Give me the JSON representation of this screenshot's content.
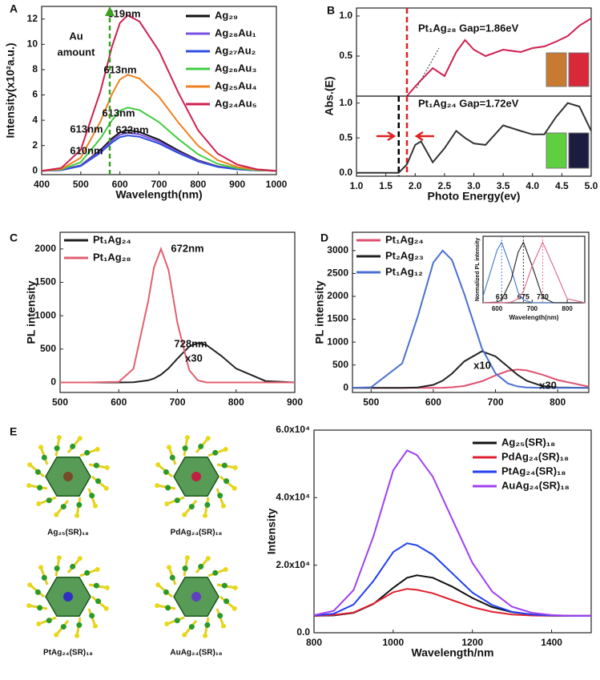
{
  "chart_data": [
    {
      "type": "line",
      "panel": "A",
      "xlabel": "Wavelength(nm)",
      "ylabel": "Intensity(x10²a.u.)",
      "x": [
        400,
        450,
        500,
        550,
        580,
        600,
        620,
        650,
        700,
        750,
        800,
        850,
        900,
        950,
        1000
      ],
      "xlim": [
        400,
        1000
      ],
      "xticks": [
        400,
        500,
        600,
        700,
        800,
        900,
        1000
      ],
      "ylim": [
        -0.3,
        13
      ],
      "yticks": [
        0,
        2,
        4,
        6,
        8,
        10,
        12
      ],
      "series": [
        {
          "name": "Ag₂₉",
          "color": "#111111",
          "values": [
            0,
            0.06,
            0.43,
            1.63,
            2.56,
            3.04,
            3.2,
            3.07,
            2.46,
            1.6,
            0.83,
            0.35,
            0.13,
            0.03,
            0
          ]
        },
        {
          "name": "Ag₂₈Au₁",
          "color": "#7b4fe0",
          "values": [
            0,
            0.05,
            0.41,
            1.53,
            2.4,
            2.85,
            3.0,
            2.88,
            2.31,
            1.5,
            0.78,
            0.33,
            0.12,
            0.03,
            0
          ]
        },
        {
          "name": "Ag₂₇Au₂",
          "color": "#3050e0",
          "values": [
            0,
            0.05,
            0.38,
            1.43,
            2.24,
            2.66,
            2.8,
            2.69,
            2.16,
            1.4,
            0.73,
            0.31,
            0.11,
            0.03,
            0
          ]
        },
        {
          "name": "Ag₂₆Au₃",
          "color": "#40cc40",
          "values": [
            0,
            0.09,
            0.68,
            2.55,
            4.0,
            4.75,
            5.0,
            4.8,
            3.85,
            2.5,
            1.3,
            0.55,
            0.2,
            0.05,
            0
          ]
        },
        {
          "name": "Ag₂₅Au₄",
          "color": "#f08020",
          "values": [
            0,
            0.14,
            1.03,
            3.88,
            6.08,
            7.22,
            7.6,
            7.3,
            5.85,
            3.8,
            1.98,
            0.84,
            0.3,
            0.08,
            0
          ]
        },
        {
          "name": "Ag₂₄Au₅",
          "color": "#d02050",
          "values": [
            0,
            0.22,
            1.66,
            6.27,
            9.84,
            11.69,
            12.3,
            11.81,
            9.47,
            6.15,
            3.2,
            1.35,
            0.49,
            0.12,
            0
          ]
        }
      ],
      "annotations": [
        {
          "text": "619nm",
          "color": "#d02050"
        },
        {
          "text": "Au",
          "color": "#3a9a20"
        },
        {
          "text": "amount",
          "color": "#3a9a20"
        },
        {
          "text": "613nm",
          "color": "#f08020"
        },
        {
          "text": "613nm",
          "color": "#40cc40"
        },
        {
          "text": "613nm",
          "color": "#7b4fe0"
        },
        {
          "text": "622nm",
          "color": "#111111"
        },
        {
          "text": "610nm",
          "color": "#3050e0"
        }
      ]
    },
    {
      "type": "line",
      "panel": "B",
      "ylabel": "Abs.(E)",
      "x": [
        1.0,
        1.5,
        1.72,
        1.86,
        2.0,
        2.1,
        2.3,
        2.5,
        2.7,
        2.85,
        3.0,
        3.2,
        3.5,
        3.8,
        4.0,
        4.2,
        4.4,
        4.6,
        4.8,
        5.0
      ],
      "xlim": [
        1.0,
        5.0
      ],
      "ylim": [
        0,
        1.1
      ],
      "yticks": [
        0.5,
        {
          "value": 1,
          "label": "1.0"
        }
      ],
      "series": [
        {
          "color": "#d02050",
          "values": [
            null,
            null,
            null,
            0,
            0.12,
            0.2,
            0.35,
            0.25,
            0.55,
            0.7,
            0.58,
            0.5,
            0.58,
            0.55,
            0.6,
            0.62,
            0.68,
            0.75,
            0.88,
            0.97
          ]
        }
      ],
      "annotations": [
        {
          "text": "Pt₁Ag₂₈  Gap=1.86eV",
          "color": "#e02020"
        }
      ]
    },
    {
      "type": "line",
      "xlabel": "Photo Energy(ev)",
      "x": [
        1.0,
        1.5,
        1.72,
        1.86,
        2.0,
        2.1,
        2.3,
        2.5,
        2.7,
        2.85,
        3.0,
        3.2,
        3.5,
        3.8,
        4.0,
        4.2,
        4.4,
        4.6,
        4.8,
        5.0
      ],
      "xlim": [
        1.0,
        5.0
      ],
      "xticks": [
        {
          "value": 1,
          "label": "1.0"
        },
        1.5,
        {
          "value": 2,
          "label": "2.0"
        },
        2.5,
        {
          "value": 3,
          "label": "3.0"
        },
        3.5,
        {
          "value": 4,
          "label": "4.0"
        },
        4.5,
        {
          "value": 5,
          "label": "5.0"
        }
      ],
      "ylim": [
        -0.05,
        1.1
      ],
      "yticks": [
        {
          "value": 0,
          "label": "0.0"
        },
        0.5,
        {
          "value": 1,
          "label": "1.0"
        }
      ],
      "series": [
        {
          "color": "#333333",
          "values": [
            0,
            0,
            0,
            0.12,
            0.4,
            0.45,
            0.15,
            0.35,
            0.6,
            0.5,
            0.42,
            0.4,
            0.68,
            0.6,
            0.55,
            0.55,
            0.8,
            1.0,
            0.95,
            0.6
          ]
        }
      ],
      "markers": [
        {
          "x": 1.72,
          "color": "#000000"
        },
        {
          "x": 1.86,
          "color": "#e02020"
        }
      ],
      "annotations": [
        {
          "text": "Pt₁Ag₂₄  Gap=1.72eV",
          "color": "#111111"
        }
      ]
    },
    {
      "type": "line",
      "panel": "C",
      "ylabel": "PL intensity",
      "x": [
        500,
        550,
        600,
        625,
        650,
        660,
        672,
        685,
        700,
        720,
        735,
        750,
        775,
        800,
        850,
        900
      ],
      "xlim": [
        500,
        900
      ],
      "xticks": [
        500,
        600,
        700,
        800,
        900
      ],
      "ylim": [
        -150,
        2250
      ],
      "yticks": [
        0,
        500,
        1000,
        1500,
        2000
      ],
      "series": [
        {
          "name": "Pt₁Ag₂₄",
          "color": "#222222",
          "values": [
            0,
            0,
            0,
            4,
            31,
            59,
            117,
            213,
            358,
            538,
            590,
            558,
            397,
            208,
            22,
            0
          ]
        },
        {
          "name": "Pt₁Ag₂₈",
          "color": "#e06070",
          "values": [
            0,
            0,
            10,
            204,
            1213,
            1723,
            2000,
            1680,
            890,
            185,
            30,
            0,
            0,
            0,
            0,
            0
          ]
        }
      ],
      "annotations": [
        {
          "text": "672nm",
          "color": "#d02040"
        },
        {
          "text": "728nm",
          "color": "#111111"
        },
        {
          "text": "x30",
          "color": "#111111"
        }
      ]
    },
    {
      "type": "line",
      "panel": "D",
      "ylabel": "PL intensity",
      "x": [
        470,
        500,
        550,
        575,
        600,
        615,
        630,
        650,
        678,
        700,
        720,
        735,
        750,
        775,
        800,
        850
      ],
      "xlim": [
        470,
        850
      ],
      "xticks": [
        500,
        600,
        700,
        800
      ],
      "ylim": [
        -100,
        3400
      ],
      "yticks": [
        0,
        500,
        1000,
        1500,
        2000,
        2500,
        3000
      ],
      "series": [
        {
          "name": "Pt₁Ag₂₄",
          "color": "#e05070",
          "values": [
            0,
            0,
            0,
            0,
            1,
            4,
            13,
            42,
            145,
            273,
            373,
            400,
            383,
            291,
            172,
            28
          ]
        },
        {
          "name": "Pt₂Ag₂₃",
          "color": "#222222",
          "values": [
            0,
            0,
            0,
            10,
            67,
            158,
            312,
            581,
            800,
            688,
            462,
            290,
            158,
            42,
            8,
            0
          ]
        },
        {
          "name": "Pt₁Ag₁₂",
          "color": "#4a70d0",
          "values": [
            0,
            13,
            535,
            1560,
            2736,
            3000,
            2796,
            2046,
            868,
            314,
            96,
            33,
            9,
            0,
            0,
            0
          ]
        }
      ],
      "annotations": [
        {
          "text": "x10",
          "color": "#111111"
        },
        {
          "text": "x30",
          "color": "#e02040"
        }
      ]
    },
    {
      "type": "line",
      "xlabel": "Wavelength(nm)",
      "ylabel": "Normalized PL intensity",
      "x": [
        560,
        600,
        613,
        640,
        660,
        675,
        700,
        730,
        760,
        800,
        850
      ],
      "xlim": [
        560,
        850
      ],
      "xticks": [
        600,
        700,
        800
      ],
      "ylim": [
        0,
        1.1
      ],
      "series": [
        {
          "color": "#5080d0",
          "values": [
            0.106,
            0.87,
            1,
            0.56,
            0.17,
            0.046,
            0.002,
            0,
            0,
            0,
            0
          ]
        },
        {
          "color": "#333333",
          "values": [
            0,
            0.011,
            0.046,
            0.375,
            0.835,
            1,
            0.61,
            0.089,
            0.003,
            0,
            0
          ]
        },
        {
          "color": "#e07090",
          "values": [
            0,
            0,
            0,
            0.011,
            0.066,
            0.19,
            0.61,
            1,
            0.61,
            0.066,
            0
          ]
        }
      ],
      "peaks": [
        613,
        675,
        730
      ]
    },
    {
      "type": "line",
      "xlabel": "Wavelength/nm",
      "ylabel": "Intensity",
      "x": [
        800,
        850,
        900,
        950,
        1000,
        1035,
        1060,
        1100,
        1150,
        1200,
        1250,
        1300,
        1350,
        1400,
        1450,
        1500
      ],
      "xlim": [
        800,
        1500
      ],
      "xticks": [
        800,
        1000,
        1200,
        1400
      ],
      "ylim": [
        0,
        60000
      ],
      "yticks": [
        {
          "value": 0,
          "label": "0.0"
        },
        {
          "value": 20000,
          "label": "2.0x10⁴"
        },
        {
          "value": 40000,
          "label": "4.0x10⁴"
        },
        {
          "value": 60000,
          "label": "6.0x10⁴"
        }
      ],
      "series": [
        {
          "name": "Ag₂₅(SR)₁₈",
          "color": "#111111",
          "values": [
            5000,
            5130,
            5880,
            8500,
            13300,
            16300,
            17000,
            16300,
            13600,
            10300,
            7600,
            6100,
            5400,
            5100,
            5000,
            5000
          ]
        },
        {
          "name": "PdAg₂₄(SR)₁₈",
          "color": "#e02030",
          "values": [
            5000,
            5300,
            6000,
            8600,
            12000,
            13000,
            12700,
            11700,
            9600,
            7600,
            6200,
            5400,
            5100,
            5000,
            5000,
            5000
          ]
        },
        {
          "name": "PtAg₂₄(SR)₁₈",
          "color": "#2040f0",
          "values": [
            5100,
            5650,
            8350,
            15300,
            23900,
            26500,
            25900,
            23100,
            17500,
            11900,
            8200,
            6200,
            5400,
            5100,
            5000,
            5000
          ]
        },
        {
          "name": "AuAg₂₄(SR)₁₈",
          "color": "#a040f0",
          "values": [
            5200,
            6500,
            12640,
            28500,
            48100,
            54000,
            52600,
            46200,
            33400,
            20700,
            12200,
            7700,
            5900,
            5250,
            5000,
            5000
          ]
        }
      ]
    }
  ],
  "structures": {
    "panel": "E",
    "labels": [
      "Ag₂₅(SR)₁₈",
      "PdAg₂₄(SR)₁₈",
      "PtAg₂₄(SR)₁₈",
      "AuAg₂₄(SR)₁₈"
    ],
    "colors": [
      "#111111",
      "#c02040",
      "#2040e0",
      "#a040f0"
    ]
  }
}
